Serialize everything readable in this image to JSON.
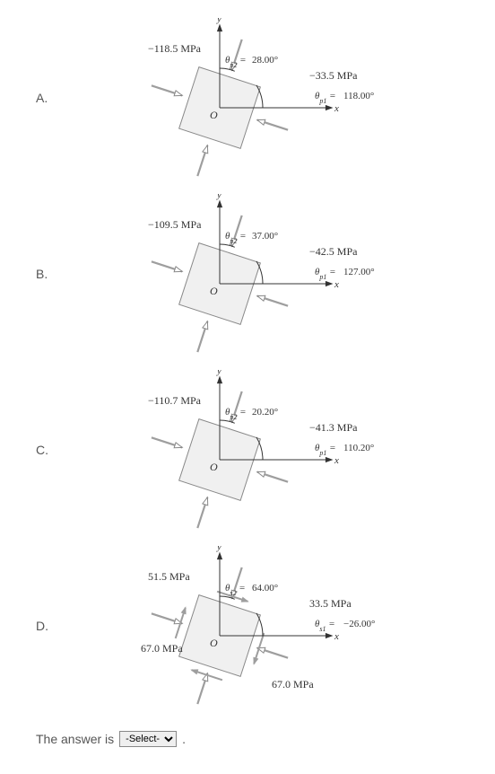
{
  "colors": {
    "text": "#555555",
    "fig_text": "#333333",
    "element_fill": "#f0f0f0",
    "element_stroke": "#888888",
    "axis": "#333333",
    "arrow_solid": "#9e9e9e",
    "arrow_hollow_stroke": "#888888",
    "arrow_hollow_fill": "#ffffff",
    "arc": "#333333"
  },
  "answer_text_before": "The answer is",
  "answer_text_after": ".",
  "select_placeholder": "-Select-",
  "axis_labels": {
    "x": "x",
    "y": "y",
    "origin": "O"
  },
  "options": [
    {
      "label": "A.",
      "type": "principal",
      "top_left_stress": "−118.5 MPa",
      "theta2_label": "θ_p2 =",
      "theta2_val": "28.00°",
      "right_stress": "−33.5 MPa",
      "theta1_label": "θ_p1 =",
      "theta1_val": "118.00°"
    },
    {
      "label": "B.",
      "type": "principal",
      "top_left_stress": "−109.5 MPa",
      "theta2_label": "θ_p2 =",
      "theta2_val": "37.00°",
      "right_stress": "−42.5 MPa",
      "theta1_label": "θ_p1 =",
      "theta1_val": "127.00°"
    },
    {
      "label": "C.",
      "type": "principal",
      "top_left_stress": "−110.7 MPa",
      "theta2_label": "θ_p2 =",
      "theta2_val": "20.20°",
      "right_stress": "−41.3 MPa",
      "theta1_label": "θ_p1 =",
      "theta1_val": "110.20°"
    },
    {
      "label": "D.",
      "type": "shear",
      "top_left_stress": "51.5 MPa",
      "theta2_label": "θ_s2 =",
      "theta2_val": "64.00°",
      "right_stress": "33.5 MPa",
      "theta1_label": "θ_s1 =",
      "theta1_val": "−26.00°",
      "left_normal": "67.0 MPa",
      "bottom_normal": "67.0 MPa"
    }
  ]
}
